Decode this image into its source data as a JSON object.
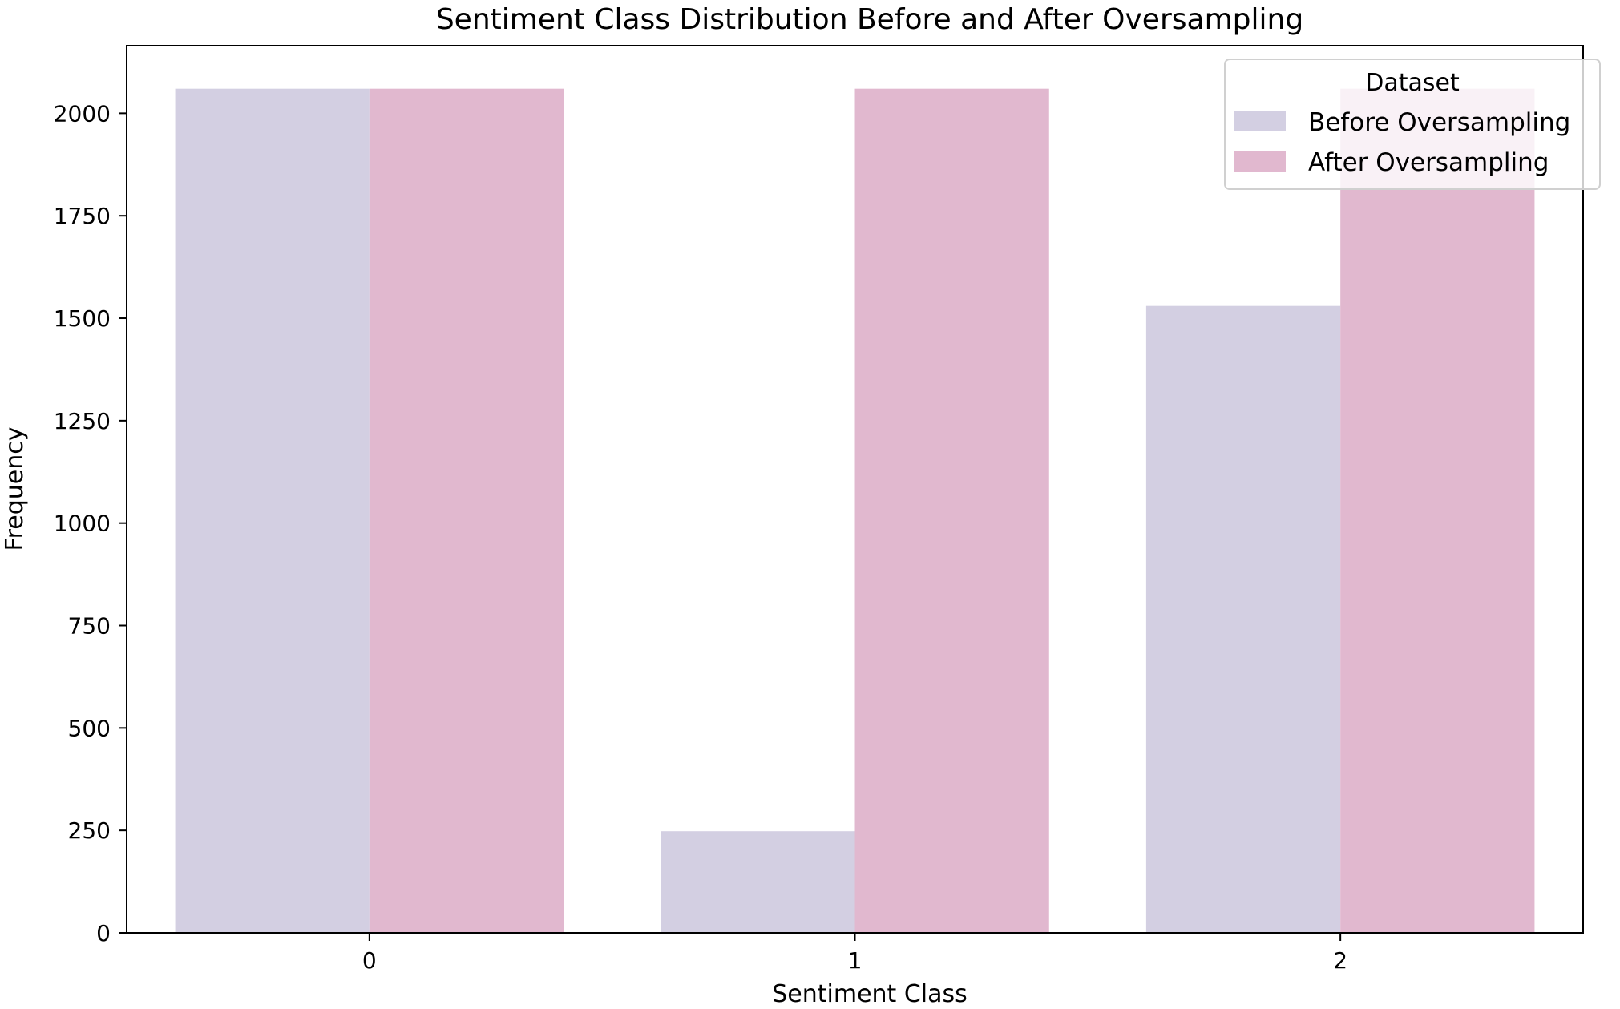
{
  "chart_data": {
    "type": "bar",
    "title": "Sentiment Class Distribution Before and After Oversampling",
    "xlabel": "Sentiment Class",
    "ylabel": "Frequency",
    "categories": [
      "0",
      "1",
      "2"
    ],
    "series": [
      {
        "name": "Before Oversampling",
        "values": [
          2060,
          248,
          1530
        ],
        "color": "#d3cfe2"
      },
      {
        "name": "After Oversampling",
        "values": [
          2060,
          2060,
          2060
        ],
        "color": "#e1b8cf"
      }
    ],
    "yticks": [
      0,
      250,
      500,
      750,
      1000,
      1250,
      1500,
      1750,
      2000
    ],
    "ylim": [
      0,
      2165
    ],
    "grid": false,
    "legend_title": "Dataset",
    "legend_position": "top-right"
  }
}
